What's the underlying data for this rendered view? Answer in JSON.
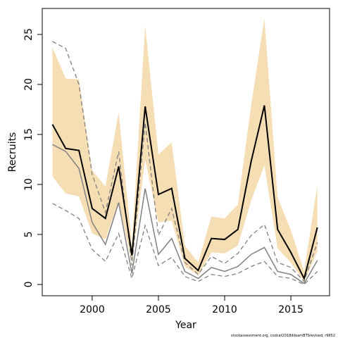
{
  "chart_data": {
    "type": "line",
    "x_label": "Year",
    "y_label": "Recruits",
    "footer": "stockassessment.org, codcat2018ddsamBTSrevised, r9652",
    "x": [
      1997,
      1998,
      1999,
      2000,
      2001,
      2002,
      2003,
      2004,
      2005,
      2006,
      2007,
      2008,
      2009,
      2010,
      2011,
      2012,
      2013,
      2014,
      2015,
      2016,
      2017
    ],
    "band": {
      "color": "#f5deb3",
      "upper": [
        23.7,
        20.6,
        20.5,
        11.4,
        9.8,
        17.2,
        4.0,
        25.8,
        13.0,
        14.2,
        3.9,
        2.2,
        6.8,
        6.6,
        8.0,
        17.9,
        26.6,
        8.7,
        5.4,
        1.3,
        9.9
      ],
      "lower": [
        10.8,
        9.1,
        8.8,
        5.1,
        4.5,
        8.3,
        2.1,
        12.5,
        6.2,
        6.4,
        1.8,
        0.9,
        3.2,
        3.1,
        3.9,
        8.4,
        11.9,
        3.6,
        2.2,
        0.3,
        3.3
      ]
    },
    "series": [
      {
        "color": "#808080",
        "style": "dashed",
        "width": 1.3,
        "values": [
          24.3,
          23.6,
          20.0,
          11.0,
          7.2,
          13.3,
          1.9,
          16.2,
          4.9,
          7.6,
          2.2,
          1.0,
          2.8,
          2.1,
          3.1,
          4.9,
          6.0,
          2.2,
          1.7,
          0.3,
          4.2
        ]
      },
      {
        "color": "#808080",
        "style": "dashed",
        "width": 1.3,
        "values": [
          8.1,
          7.4,
          6.6,
          3.5,
          2.3,
          5.1,
          0.6,
          5.9,
          1.9,
          2.7,
          0.8,
          0.3,
          1.0,
          0.8,
          1.1,
          1.8,
          2.3,
          0.8,
          0.6,
          0.0,
          1.3
        ]
      },
      {
        "color": "#808080",
        "style": "solid",
        "width": 1.5,
        "values": [
          14.0,
          13.3,
          11.6,
          6.2,
          4.0,
          8.2,
          1.1,
          9.6,
          3.0,
          4.6,
          1.3,
          0.6,
          1.7,
          1.3,
          1.8,
          3.0,
          3.7,
          1.3,
          1.0,
          0.1,
          2.4
        ]
      },
      {
        "color": "#000000",
        "style": "solid",
        "width": 2,
        "values": [
          16.0,
          13.6,
          13.4,
          7.6,
          6.6,
          11.8,
          2.9,
          17.8,
          9.0,
          9.6,
          2.6,
          1.4,
          4.6,
          4.5,
          5.5,
          12.3,
          17.9,
          5.5,
          3.2,
          0.6,
          5.7
        ]
      }
    ],
    "xlim": [
      1996.23,
      2017.92
    ],
    "xticks": [
      2000,
      2005,
      2010,
      2015
    ],
    "ylim": [
      -1.13,
      27.6
    ],
    "yticks": [
      0,
      5,
      10,
      15,
      20,
      25
    ]
  }
}
